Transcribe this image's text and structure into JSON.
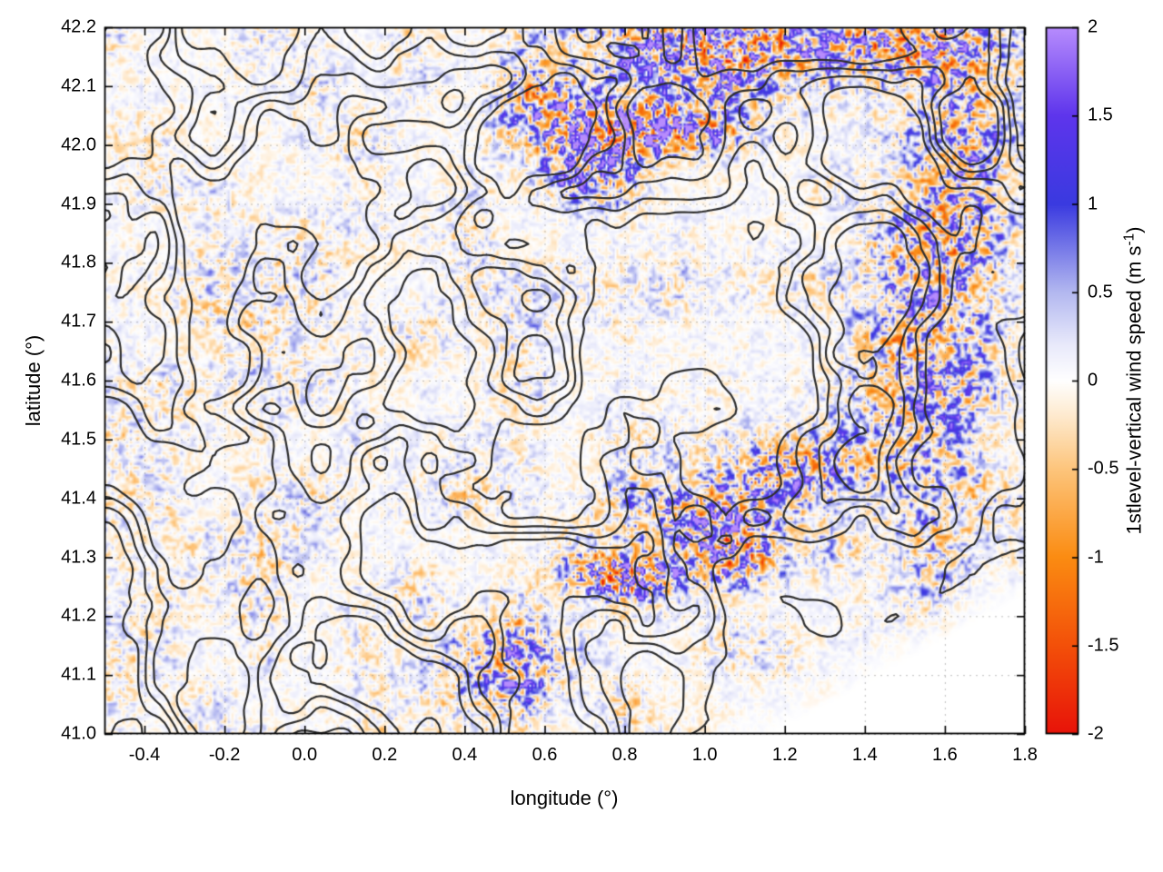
{
  "figure": {
    "kind": "gnuplot-style filled heatmap with terrain contour overlay"
  },
  "chart_data": {
    "type": "heatmap",
    "title": "",
    "xlabel": "longitude (°)",
    "ylabel": "latitude (°)",
    "xlim": [
      -0.5,
      1.8
    ],
    "ylim": [
      41.0,
      42.2
    ],
    "grid": true,
    "legend": "none",
    "x_tick_values": [
      -0.4,
      -0.2,
      0.0,
      0.2,
      0.4,
      0.6,
      0.8,
      1.0,
      1.2,
      1.4,
      1.6,
      1.8
    ],
    "x_tick_labels": [
      "-0.4",
      "-0.2",
      "0.0",
      "0.2",
      "0.4",
      "0.6",
      "0.8",
      "1.0",
      "1.2",
      "1.4",
      "1.6",
      "1.8"
    ],
    "y_tick_values": [
      41.0,
      41.1,
      41.2,
      41.3,
      41.4,
      41.5,
      41.6,
      41.7,
      41.8,
      41.9,
      42.0,
      42.1,
      42.2
    ],
    "y_tick_labels": [
      "41.0",
      "41.1",
      "41.2",
      "41.3",
      "41.4",
      "41.5",
      "41.6",
      "41.7",
      "41.8",
      "41.9",
      "42.0",
      "42.1",
      "42.2"
    ],
    "colorbar": {
      "label": "1stlevel-vertical wind speed (m s⁻¹)",
      "label_parts": {
        "prefix": "1stlevel-vertical wind speed (m s",
        "sup": "-1",
        "suffix": ")"
      },
      "min": -2,
      "max": 2,
      "tick_values": [
        -2,
        -1.5,
        -1,
        -0.5,
        0,
        0.5,
        1,
        1.5,
        2
      ],
      "tick_labels": [
        "-2",
        "-1.5",
        "-1",
        "-0.5",
        "0",
        "0.5",
        "1",
        "1.5",
        "2"
      ],
      "position": "right",
      "stops": [
        [
          -2.0,
          "#e81309"
        ],
        [
          -1.5,
          "#f35009"
        ],
        [
          -1.0,
          "#fb8c12"
        ],
        [
          -0.5,
          "#fdc57c"
        ],
        [
          -0.2,
          "#feeace"
        ],
        [
          0.0,
          "#ffffff"
        ],
        [
          0.2,
          "#e9eafb"
        ],
        [
          0.5,
          "#b3b8f0"
        ],
        [
          1.0,
          "#3a3ae0"
        ],
        [
          1.5,
          "#5e35ec"
        ],
        [
          2.0,
          "#b78cfd"
        ]
      ]
    },
    "contours": {
      "color": "#2e2e2e",
      "note": "black orography/terrain contour lines overlaid on the wind-speed field"
    },
    "field_summary": "Fine-grained vertical wind speed field, mostly near 0 m/s (white) with pale blue and pale orange speckle; strong blue updraft streaks (1-2 m/s) along mountain ridges near (0.85,42.03), the top-right corner band, (0.8,41.27) and a SW-NE band toward (1.2,41.45); blank (no-data) white triangle in the SE corner",
    "updraft_hotspots": [
      {
        "lon": 0.85,
        "lat": 42.03,
        "spread_lon": 0.2,
        "spread_lat": 0.045,
        "strength": 1.7
      },
      {
        "lon": 0.7,
        "lat": 41.96,
        "spread_lon": 0.12,
        "spread_lat": 0.05,
        "strength": 0.9
      },
      {
        "lon": 1.02,
        "lat": 42.16,
        "spread_lon": 0.28,
        "spread_lat": 0.07,
        "strength": 1.2
      },
      {
        "lon": 1.5,
        "lat": 42.17,
        "spread_lon": 0.22,
        "spread_lat": 0.06,
        "strength": 1.0
      },
      {
        "lon": 0.6,
        "lat": 42.08,
        "spread_lon": 0.1,
        "spread_lat": 0.05,
        "strength": 0.8
      },
      {
        "lon": 0.8,
        "lat": 41.27,
        "spread_lon": 0.13,
        "spread_lat": 0.035,
        "strength": 1.6
      },
      {
        "lon": 1.0,
        "lat": 41.37,
        "spread_lon": 0.2,
        "spread_lat": 0.06,
        "strength": 0.9
      },
      {
        "lon": 1.22,
        "lat": 41.46,
        "spread_lon": 0.16,
        "spread_lat": 0.05,
        "strength": 0.8
      },
      {
        "lon": 1.55,
        "lat": 41.62,
        "spread_lon": 0.14,
        "spread_lat": 0.3,
        "strength": 0.7
      },
      {
        "lon": 1.65,
        "lat": 42.0,
        "spread_lon": 0.12,
        "spread_lat": 0.18,
        "strength": 0.7
      },
      {
        "lon": 0.5,
        "lat": 41.12,
        "spread_lon": 0.16,
        "spread_lat": 0.07,
        "strength": 0.7
      },
      {
        "lon": 1.08,
        "lat": 41.3,
        "spread_lon": 0.1,
        "spread_lat": 0.05,
        "strength": 1.0
      }
    ],
    "blank_region": {
      "note": "white no-data triangle in SE corner below diagonal boundary",
      "boundary": [
        [
          0.95,
          41.0
        ],
        [
          1.8,
          41.32
        ]
      ]
    }
  }
}
